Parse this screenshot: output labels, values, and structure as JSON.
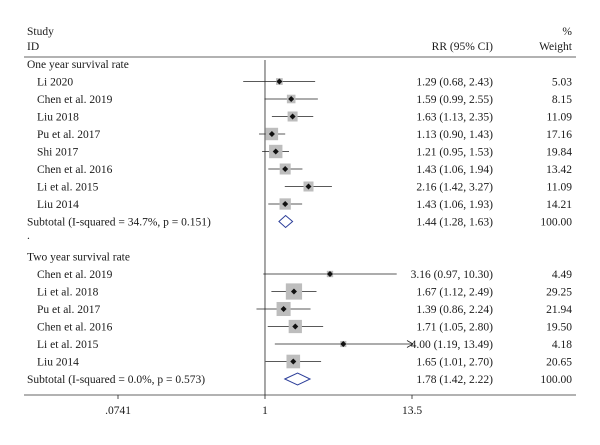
{
  "chart_data": {
    "type": "forest",
    "columns": {
      "study_line1": "Study",
      "study_line2": "ID",
      "effect": "RR (95% CI)",
      "weight_line1": "%",
      "weight_line2": "Weight"
    },
    "x_axis": {
      "scale": "log",
      "ticks": [
        0.0741,
        1,
        13.5
      ],
      "tick_labels": [
        ".0741",
        "1",
        "13.5"
      ],
      "reference_line": 1
    },
    "groups": [
      {
        "title": "One year survival rate",
        "studies": [
          {
            "name": "Li 2020",
            "rr": 1.29,
            "lo": 0.68,
            "hi": 2.43,
            "ci_text": "1.29 (0.68, 2.43)",
            "weight": "5.03"
          },
          {
            "name": "Chen et al. 2019",
            "rr": 1.59,
            "lo": 0.99,
            "hi": 2.55,
            "ci_text": "1.59 (0.99, 2.55)",
            "weight": "8.15"
          },
          {
            "name": "Liu 2018",
            "rr": 1.63,
            "lo": 1.13,
            "hi": 2.35,
            "ci_text": "1.63 (1.13, 2.35)",
            "weight": "11.09"
          },
          {
            "name": "Pu et al. 2017",
            "rr": 1.13,
            "lo": 0.9,
            "hi": 1.43,
            "ci_text": "1.13 (0.90, 1.43)",
            "weight": "17.16"
          },
          {
            "name": "Shi 2017",
            "rr": 1.21,
            "lo": 0.95,
            "hi": 1.53,
            "ci_text": "1.21 (0.95, 1.53)",
            "weight": "19.84"
          },
          {
            "name": "Chen et al. 2016",
            "rr": 1.43,
            "lo": 1.06,
            "hi": 1.94,
            "ci_text": "1.43 (1.06, 1.94)",
            "weight": "13.42"
          },
          {
            "name": "Li et al. 2015",
            "rr": 2.16,
            "lo": 1.42,
            "hi": 3.27,
            "ci_text": "2.16 (1.42, 3.27)",
            "weight": "11.09"
          },
          {
            "name": "Liu 2014",
            "rr": 1.43,
            "lo": 1.06,
            "hi": 1.93,
            "ci_text": "1.43 (1.06, 1.93)",
            "weight": "14.21"
          }
        ],
        "subtotal": {
          "label": "Subtotal (I-squared = 34.7%, p = 0.151)",
          "rr": 1.44,
          "lo": 1.28,
          "hi": 1.63,
          "ci_text": "1.44 (1.28, 1.63)",
          "weight": "100.00"
        }
      },
      {
        "title": "Two year survival rate",
        "studies": [
          {
            "name": "Chen et al. 2019",
            "rr": 3.16,
            "lo": 0.97,
            "hi": 10.3,
            "ci_text": "3.16 (0.97, 10.30)",
            "weight": "4.49"
          },
          {
            "name": "Li et al. 2018",
            "rr": 1.67,
            "lo": 1.12,
            "hi": 2.49,
            "ci_text": "1.67 (1.12, 2.49)",
            "weight": "29.25"
          },
          {
            "name": "Pu et al. 2017",
            "rr": 1.39,
            "lo": 0.86,
            "hi": 2.24,
            "ci_text": "1.39 (0.86, 2.24)",
            "weight": "21.94"
          },
          {
            "name": "Chen et al. 2016",
            "rr": 1.71,
            "lo": 1.05,
            "hi": 2.8,
            "ci_text": "1.71 (1.05, 2.80)",
            "weight": "19.50"
          },
          {
            "name": "Li et al. 2015",
            "rr": 4.0,
            "lo": 1.19,
            "hi": 13.49,
            "ci_text": "4.00 (1.19, 13.49)",
            "weight": "4.18",
            "arrow": true
          },
          {
            "name": "Liu 2014",
            "rr": 1.65,
            "lo": 1.01,
            "hi": 2.7,
            "ci_text": "1.65 (1.01, 2.70)",
            "weight": "20.65"
          }
        ],
        "subtotal": {
          "label": "Subtotal (I-squared = 0.0%, p = 0.573)",
          "rr": 1.78,
          "lo": 1.42,
          "hi": 2.22,
          "ci_text": "1.78 (1.42, 2.22)",
          "weight": "100.00"
        }
      }
    ],
    "separator_mark": "."
  }
}
